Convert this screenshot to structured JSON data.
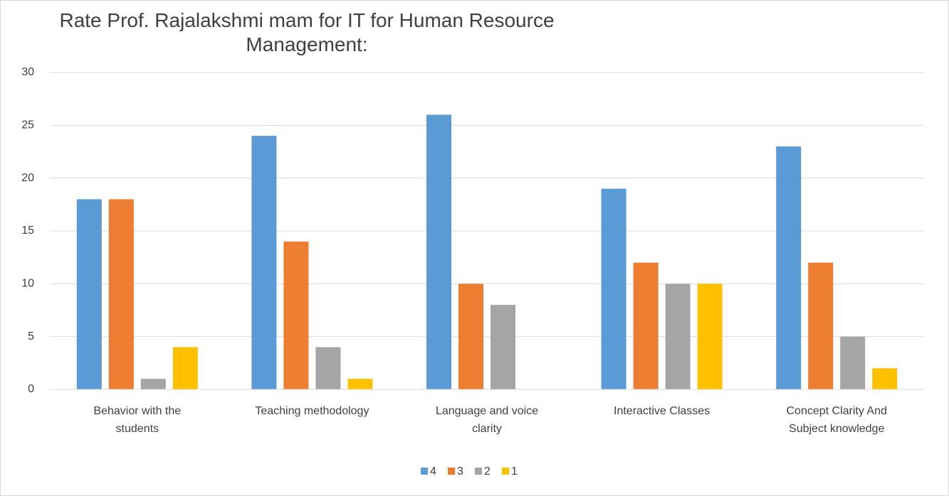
{
  "chart_data": {
    "type": "bar",
    "title": "Rate Prof. Rajalakshmi mam for IT for Human Resource Management:",
    "categories": [
      "Behavior with the students",
      "Teaching methodology",
      "Language and voice clarity",
      "Interactive Classes",
      "Concept Clarity And Subject knowledge"
    ],
    "series": [
      {
        "name": "4",
        "color": "#5b9bd5",
        "values": [
          18,
          24,
          26,
          19,
          23
        ]
      },
      {
        "name": "3",
        "color": "#ed7d31",
        "values": [
          18,
          14,
          10,
          12,
          12
        ]
      },
      {
        "name": "2",
        "color": "#a5a5a5",
        "values": [
          1,
          4,
          8,
          10,
          5
        ]
      },
      {
        "name": "1",
        "color": "#ffc000",
        "values": [
          4,
          1,
          0,
          10,
          2
        ]
      }
    ],
    "ylim": [
      0,
      30
    ],
    "yticks": [
      0,
      5,
      10,
      15,
      20,
      25,
      30
    ],
    "grid": true,
    "legend": "bottom"
  }
}
